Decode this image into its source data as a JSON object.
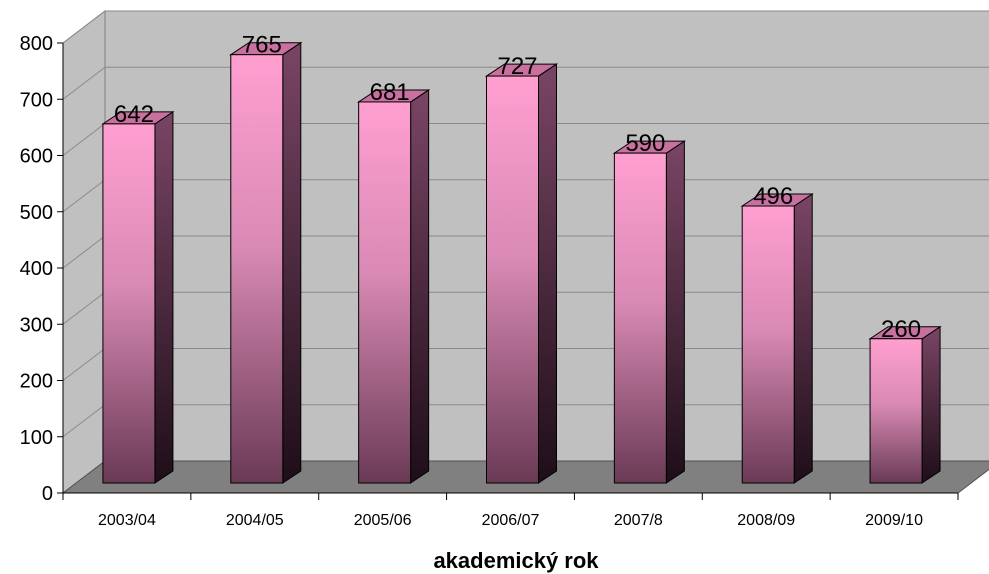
{
  "chart_data": {
    "type": "bar",
    "categories": [
      "2003/04",
      "2004/05",
      "2005/06",
      "2006/07",
      "2007/8",
      "2008/09",
      "2009/10"
    ],
    "values": [
      642,
      765,
      681,
      727,
      590,
      496,
      260
    ],
    "title": "",
    "xlabel": "akademický rok",
    "ylabel": "",
    "ylim": [
      0,
      800
    ],
    "yticks": [
      0,
      100,
      200,
      300,
      400,
      500,
      600,
      700,
      800
    ],
    "grid": true,
    "three_d": true,
    "colors": {
      "bar_light": "#ff9fd0",
      "bar_dark": "#6a3a55",
      "bar_side_dark": "#1e0e18",
      "bar_side_light": "#7a4565",
      "bar_top": "#c8709f",
      "wall": "#c0c0c0",
      "floor": "#808080",
      "grid": "#8a8a8a"
    }
  }
}
